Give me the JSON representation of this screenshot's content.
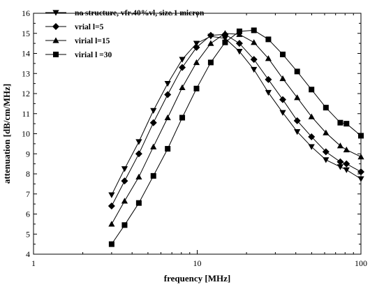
{
  "chart_data": {
    "type": "line",
    "xscale": "log",
    "xlim": [
      1,
      100
    ],
    "ylim": [
      4,
      16
    ],
    "xticks": [
      1,
      10,
      100
    ],
    "xtick_labels": [
      "1",
      "10",
      "100"
    ],
    "yticks": [
      4,
      5,
      6,
      7,
      8,
      9,
      10,
      11,
      12,
      13,
      14,
      15,
      16
    ],
    "ytick_labels": [
      "4",
      "5",
      "6",
      "7",
      "8",
      "9",
      "10",
      "11",
      "12",
      "13",
      "14",
      "15",
      "16"
    ],
    "xlabel": "frequency [MHz]",
    "ylabel": "attenuation [dB/cm/MHz]",
    "grid": false,
    "legend_position": "top-left",
    "series": [
      {
        "name": "no structure, vfr 40%vl, size 1 micron",
        "marker": "triangle-down",
        "x": [
          3.0,
          3.6,
          4.4,
          5.4,
          6.6,
          8.1,
          9.9,
          12.1,
          14.8,
          18.1,
          22.2,
          27.2,
          33.3,
          40.8,
          49.9,
          61.1,
          74.8,
          81.6,
          100
        ],
        "y": [
          6.95,
          8.25,
          9.6,
          11.15,
          12.5,
          13.7,
          14.5,
          14.85,
          14.75,
          14.1,
          13.2,
          12.05,
          11.05,
          10.1,
          9.35,
          8.7,
          8.35,
          8.2,
          7.75
        ]
      },
      {
        "name": "vrial l=5",
        "marker": "diamond",
        "x": [
          3.0,
          3.6,
          4.4,
          5.4,
          6.6,
          8.1,
          9.9,
          12.1,
          14.8,
          18.1,
          22.2,
          27.2,
          33.3,
          40.8,
          49.9,
          61.1,
          74.8,
          81.6,
          100
        ],
        "y": [
          6.4,
          7.65,
          9.0,
          10.55,
          11.95,
          13.3,
          14.3,
          14.9,
          14.95,
          14.5,
          13.7,
          12.7,
          11.7,
          10.65,
          9.85,
          9.1,
          8.6,
          8.5,
          8.1
        ]
      },
      {
        "name": "virial l=15",
        "marker": "triangle-up",
        "x": [
          3.0,
          3.6,
          4.4,
          5.4,
          6.6,
          8.1,
          9.9,
          12.1,
          14.8,
          18.1,
          22.2,
          27.2,
          33.3,
          40.8,
          49.9,
          61.1,
          74.8,
          81.6,
          100
        ],
        "y": [
          5.5,
          6.65,
          7.85,
          9.35,
          10.8,
          12.3,
          13.55,
          14.5,
          15.0,
          14.95,
          14.55,
          13.75,
          12.75,
          11.8,
          10.85,
          10.05,
          9.4,
          9.2,
          8.85
        ]
      },
      {
        "name": "virial l =30",
        "marker": "square",
        "x": [
          3.0,
          3.6,
          4.4,
          5.4,
          6.6,
          8.1,
          9.9,
          12.1,
          14.8,
          18.1,
          22.2,
          27.2,
          33.3,
          40.8,
          49.9,
          61.1,
          74.8,
          81.6,
          100
        ],
        "y": [
          4.5,
          5.45,
          6.55,
          7.9,
          9.25,
          10.8,
          12.25,
          13.55,
          14.55,
          15.1,
          15.15,
          14.7,
          13.95,
          13.1,
          12.2,
          11.3,
          10.55,
          10.5,
          9.9
        ]
      }
    ]
  }
}
